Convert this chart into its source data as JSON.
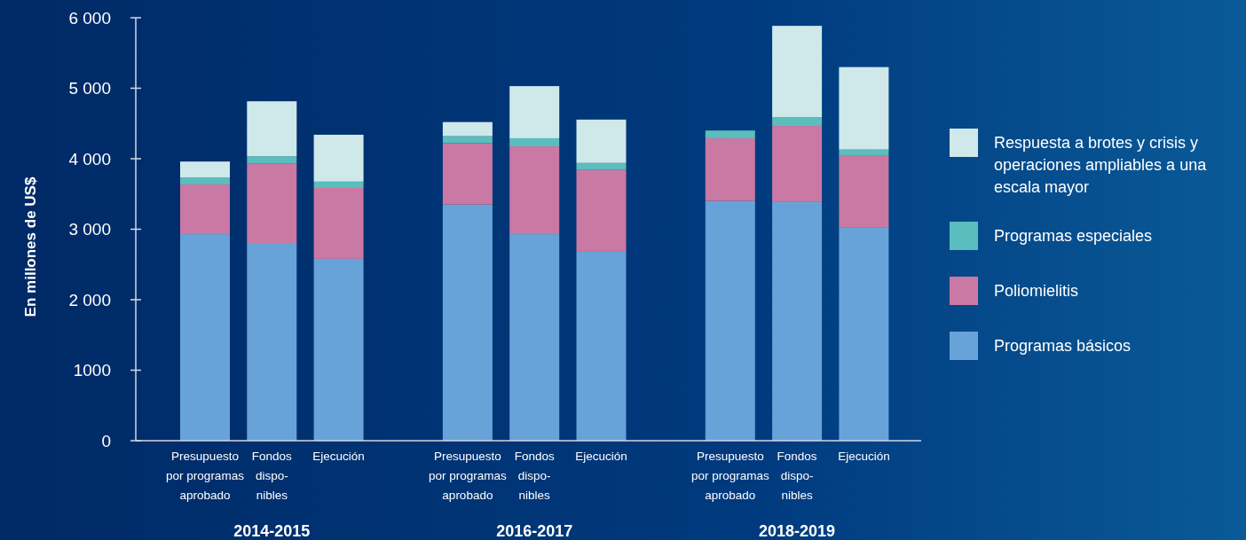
{
  "chart_data": {
    "type": "bar",
    "stacked": true,
    "categories": [
      "Presupuesto\npor programas\naprobado",
      "Fondos\ndispo-\nnibles",
      "Ejecución",
      "Presupuesto\npor programas\naprobado",
      "Fondos\ndispo-\nnibles",
      "Ejecución",
      "Presupuesto\npor programas\naprobado",
      "Fondos\ndispo-\nnibles",
      "Ejecución"
    ],
    "series": [
      {
        "name": "Programas básicos",
        "color": "#67a3d9",
        "values": [
          2930,
          2805,
          2580,
          3350,
          2930,
          2680,
          3400,
          3385,
          3020
        ]
      },
      {
        "name": "Poliomielitis",
        "color": "#c979a3",
        "values": [
          705,
          1130,
          1005,
          870,
          1245,
          1160,
          890,
          1080,
          1020
        ]
      },
      {
        "name": "Programas especiales",
        "color": "#5bbdbd",
        "values": [
          100,
          100,
          90,
          100,
          115,
          100,
          110,
          125,
          90
        ]
      },
      {
        "name": "Respuesta a brotes y crisis y operaciones ampliables a una escala mayor",
        "color": "#cfe8ea",
        "values": [
          225,
          780,
          665,
          200,
          740,
          615,
          0,
          1295,
          1170
        ]
      }
    ],
    "ylabel": "En millones de US$",
    "ylim": [
      0,
      6000
    ],
    "yticks": [
      0,
      1000,
      {
        "value": 2000,
        "label": "2 000"
      },
      {
        "value": 3000,
        "label": "3 000"
      },
      {
        "value": 4000,
        "label": "4 000"
      },
      {
        "value": 5000,
        "label": "5 000"
      },
      {
        "value": 6000,
        "label": "6 000"
      }
    ],
    "annotations": [
      "2014-2015",
      "2016-2017",
      "2018-2019"
    ],
    "legend": "right",
    "grid": false
  }
}
